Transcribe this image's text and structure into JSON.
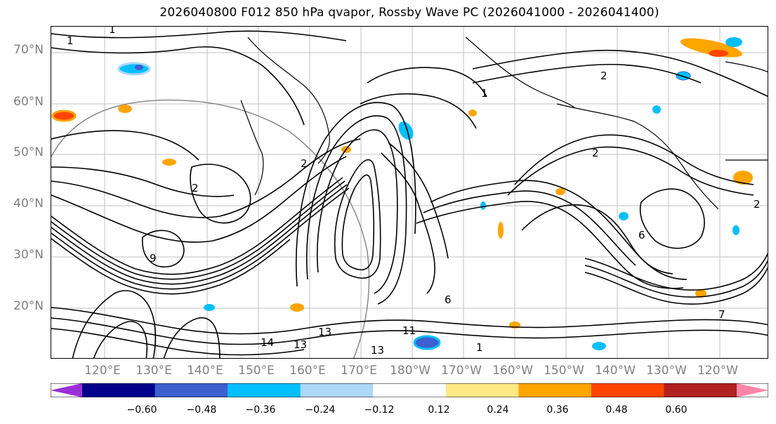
{
  "title": "2026040800 F012 850 hPa qvapor, Rossby Wave PC (2026041000 - 2026041400)",
  "lat_labels": [
    "70°N",
    "60°N",
    "50°N",
    "40°N",
    "30°N",
    "20°N"
  ],
  "lon_labels": [
    "120°E",
    "130°E",
    "140°E",
    "150°E",
    "160°E",
    "170°E",
    "180°W",
    "170°W",
    "160°W",
    "150°W",
    "140°W",
    "130°W",
    "120°W"
  ],
  "colorbar": {
    "colors": [
      "#9b30d6",
      "#00008b",
      "#3d5fcf",
      "#00bfff",
      "#add8f7",
      "#ffffff",
      "#ffe985",
      "#ffa500",
      "#ff4500",
      "#b22222",
      "#ff85a8"
    ],
    "tick_labels": [
      "−0.60",
      "−0.48",
      "−0.36",
      "−0.24",
      "−0.12",
      "0.12",
      "0.24",
      "0.36",
      "0.48",
      "0.60"
    ]
  },
  "contour_labels": [
    "1",
    "1",
    "2",
    "2",
    "2",
    "1",
    "2",
    "6",
    "13",
    "13",
    "14",
    "13",
    "9",
    "11",
    "6",
    "1",
    "7",
    "2"
  ],
  "colors": {
    "contour": "#000000",
    "grid": "#808080",
    "axis_label": "#808080"
  }
}
